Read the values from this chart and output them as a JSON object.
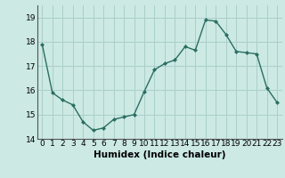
{
  "x": [
    0,
    1,
    2,
    3,
    4,
    5,
    6,
    7,
    8,
    9,
    10,
    11,
    12,
    13,
    14,
    15,
    16,
    17,
    18,
    19,
    20,
    21,
    22,
    23
  ],
  "y": [
    17.9,
    15.9,
    15.6,
    15.4,
    14.7,
    14.35,
    14.45,
    14.8,
    14.9,
    15.0,
    15.95,
    16.85,
    17.1,
    17.25,
    17.8,
    17.65,
    18.9,
    18.85,
    18.3,
    17.6,
    17.55,
    17.5,
    16.1,
    15.5
  ],
  "line_color": "#2a6e62",
  "marker": "D",
  "marker_size": 2.0,
  "bg_color": "#cce9e4",
  "grid_color": "#aacfca",
  "xlabel": "Humidex (Indice chaleur)",
  "xlabel_fontsize": 7.5,
  "tick_fontsize": 6.5,
  "ylim": [
    14,
    19.5
  ],
  "xlim": [
    -0.5,
    23.5
  ],
  "yticks": [
    14,
    15,
    16,
    17,
    18,
    19
  ],
  "xticks": [
    0,
    1,
    2,
    3,
    4,
    5,
    6,
    7,
    8,
    9,
    10,
    11,
    12,
    13,
    14,
    15,
    16,
    17,
    18,
    19,
    20,
    21,
    22,
    23
  ],
  "linewidth": 1.0,
  "spine_color": "#555555"
}
